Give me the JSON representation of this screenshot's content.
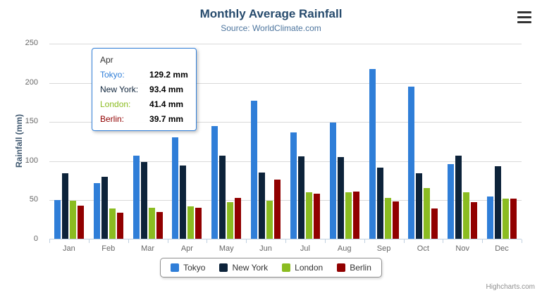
{
  "chart": {
    "title": "Monthly Average Rainfall",
    "subtitle": "Source: WorldClimate.com",
    "y_axis_title": "Rainfall (mm)",
    "credit": "Highcharts.com"
  },
  "chart_data": {
    "type": "bar",
    "title": "Monthly Average Rainfall",
    "subtitle": "Source: WorldClimate.com",
    "xlabel": "",
    "ylabel": "Rainfall (mm)",
    "ylim": [
      0,
      250
    ],
    "yticks": [
      0,
      50,
      100,
      150,
      200,
      250
    ],
    "grid": true,
    "legend_position": "bottom",
    "categories": [
      "Jan",
      "Feb",
      "Mar",
      "Apr",
      "May",
      "Jun",
      "Jul",
      "Aug",
      "Sep",
      "Oct",
      "Nov",
      "Dec"
    ],
    "series": [
      {
        "name": "Tokyo",
        "color": "#2f7ed8",
        "values": [
          49.9,
          71.5,
          106.4,
          129.2,
          144.0,
          176.0,
          135.6,
          148.5,
          216.4,
          194.1,
          95.6,
          54.4
        ]
      },
      {
        "name": "New York",
        "color": "#0d233a",
        "values": [
          83.6,
          78.8,
          98.5,
          93.4,
          106.0,
          84.5,
          105.0,
          104.3,
          91.2,
          83.5,
          106.6,
          92.3
        ]
      },
      {
        "name": "London",
        "color": "#8bbc21",
        "values": [
          48.9,
          38.8,
          39.3,
          41.4,
          47.0,
          48.3,
          59.0,
          59.6,
          52.4,
          65.2,
          59.3,
          51.2
        ]
      },
      {
        "name": "Berlin",
        "color": "#910000",
        "values": [
          42.4,
          33.2,
          34.5,
          39.7,
          52.6,
          75.5,
          57.4,
          60.4,
          47.6,
          39.1,
          46.8,
          51.1
        ]
      }
    ]
  },
  "tooltip": {
    "header": "Apr",
    "rows": [
      {
        "label": "Tokyo:",
        "value": "129.2 mm",
        "color": "#2f7ed8"
      },
      {
        "label": "New York:",
        "value": "93.4 mm",
        "color": "#0d233a"
      },
      {
        "label": "London:",
        "value": "41.4 mm",
        "color": "#8bbc21"
      },
      {
        "label": "Berlin:",
        "value": "39.7 mm",
        "color": "#910000"
      }
    ]
  }
}
